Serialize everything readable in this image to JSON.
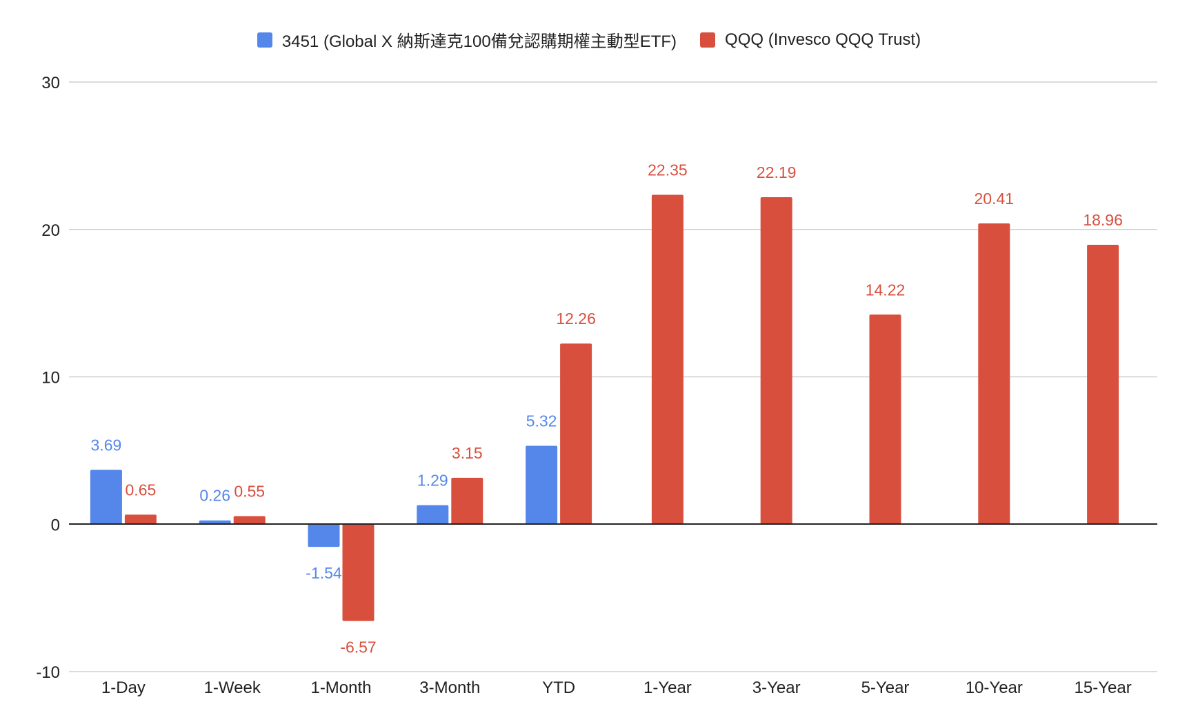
{
  "colors": {
    "series_1": "#5587ea",
    "series_2": "#d84f3e",
    "grid": "#cfcfcf",
    "zero_line": "#222222",
    "text": "#222222"
  },
  "chart_data": {
    "type": "bar",
    "title": "",
    "xlabel": "",
    "ylabel": "",
    "ylim": [
      -10,
      30
    ],
    "yticks": [
      30,
      20,
      10,
      0,
      -10
    ],
    "grid": true,
    "legend_position": "top",
    "categories": [
      "1-Day",
      "1-Week",
      "1-Month",
      "3-Month",
      "YTD",
      "1-Year",
      "3-Year",
      "5-Year",
      "10-Year",
      "15-Year"
    ],
    "series": [
      {
        "name": "3451 (Global X 納斯達克100備兌認購期權主動型ETF)",
        "values": [
          3.69,
          0.26,
          -1.54,
          1.29,
          5.32,
          null,
          null,
          null,
          null,
          null
        ],
        "labels": [
          "3.69",
          "0.26",
          "-1.54",
          "1.29",
          "5.32",
          "",
          "",
          "",
          "",
          ""
        ]
      },
      {
        "name": "QQQ (Invesco QQQ Trust)",
        "values": [
          0.65,
          0.55,
          -6.57,
          3.15,
          12.26,
          22.35,
          22.19,
          14.22,
          20.41,
          18.96
        ],
        "labels": [
          "0.65",
          "0.55",
          "-6.57",
          "3.15",
          "12.26",
          "22.35",
          "22.19",
          "14.22",
          "20.41",
          "18.96"
        ]
      }
    ]
  }
}
